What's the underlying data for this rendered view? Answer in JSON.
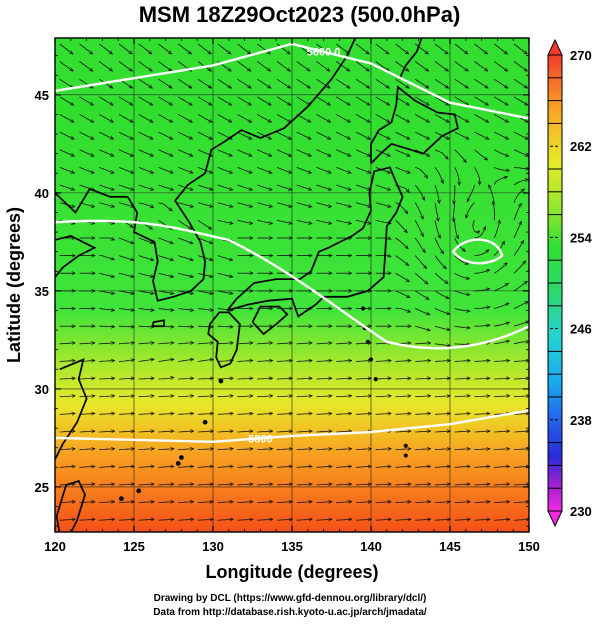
{
  "title": "MSM 18Z29Oct2023 (500.0hPa)",
  "x_axis": {
    "label": "Longitude (degrees)",
    "ticks": [
      120,
      125,
      130,
      135,
      140,
      145,
      150
    ]
  },
  "y_axis": {
    "label": "Latitude  (degrees)",
    "ticks": [
      25,
      30,
      35,
      40,
      45
    ]
  },
  "colorbar": {
    "min": 230,
    "max": 270,
    "tick_labels": [
      "270",
      "262",
      "254",
      "246",
      "238",
      "230"
    ]
  },
  "contours": [
    {
      "label": "5600.0",
      "lats_at_lons": {
        "120": 45.2,
        "130": 46.5,
        "135": 47.6,
        "140": 46.6,
        "145": 44.6,
        "150": 43.8
      }
    },
    {
      "label": "5800",
      "lats_at_lons": {
        "120": 27.5,
        "130": 27.3,
        "135": 27.6,
        "140": 27.8,
        "145": 28.2,
        "150": 28.9
      }
    }
  ],
  "credits": {
    "line1": "Drawing by DCL (https://www.gfd-dennou.org/library/dcl/)",
    "line2": "Data from http://database.rish.kyoto-u.ac.jp/arch/jmadata/"
  }
}
